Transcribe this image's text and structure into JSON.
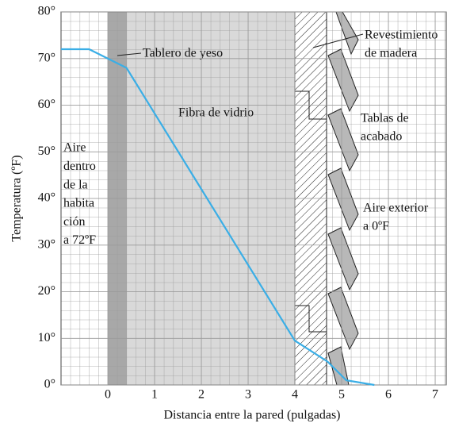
{
  "chart_data": {
    "type": "line",
    "xlabel": "Distancia entre la pared (pulgadas)",
    "ylabel": "Temperatura (ºF)",
    "x": [
      -1,
      -0.4,
      0,
      0.4,
      4,
      4.7,
      5.1,
      5.7
    ],
    "values": [
      72,
      72,
      70,
      68,
      9.5,
      5,
      1,
      0
    ],
    "color": "#3aaee6",
    "xlim": [
      -1,
      7.25
    ],
    "ylim": [
      0,
      80
    ],
    "xticks": [
      0,
      1,
      2,
      3,
      4,
      5,
      6,
      7
    ],
    "yticks": [
      {
        "value": 0,
        "label": "0°"
      },
      {
        "value": 10,
        "label": "10°"
      },
      {
        "value": 20,
        "label": "20°"
      },
      {
        "value": 30,
        "label": "30°"
      },
      {
        "value": 40,
        "label": "40°"
      },
      {
        "value": 50,
        "label": "50°"
      },
      {
        "value": 60,
        "label": "60°"
      },
      {
        "value": 70,
        "label": "70°"
      },
      {
        "value": 80,
        "label": "80°"
      }
    ],
    "grid": true,
    "annotations": {
      "gypsum": "Tablero de yeso",
      "fiberglass": "Fibra de vidrio",
      "sheathing": [
        "Revestimiento",
        "de madera"
      ],
      "siding": [
        "Tablas de",
        "acabado"
      ],
      "outside": [
        "Aire exterior",
        "a 0ºF"
      ],
      "inside": [
        "Aire",
        "dentro",
        "de la",
        "habita",
        "ción",
        "a 72ºF"
      ]
    }
  }
}
